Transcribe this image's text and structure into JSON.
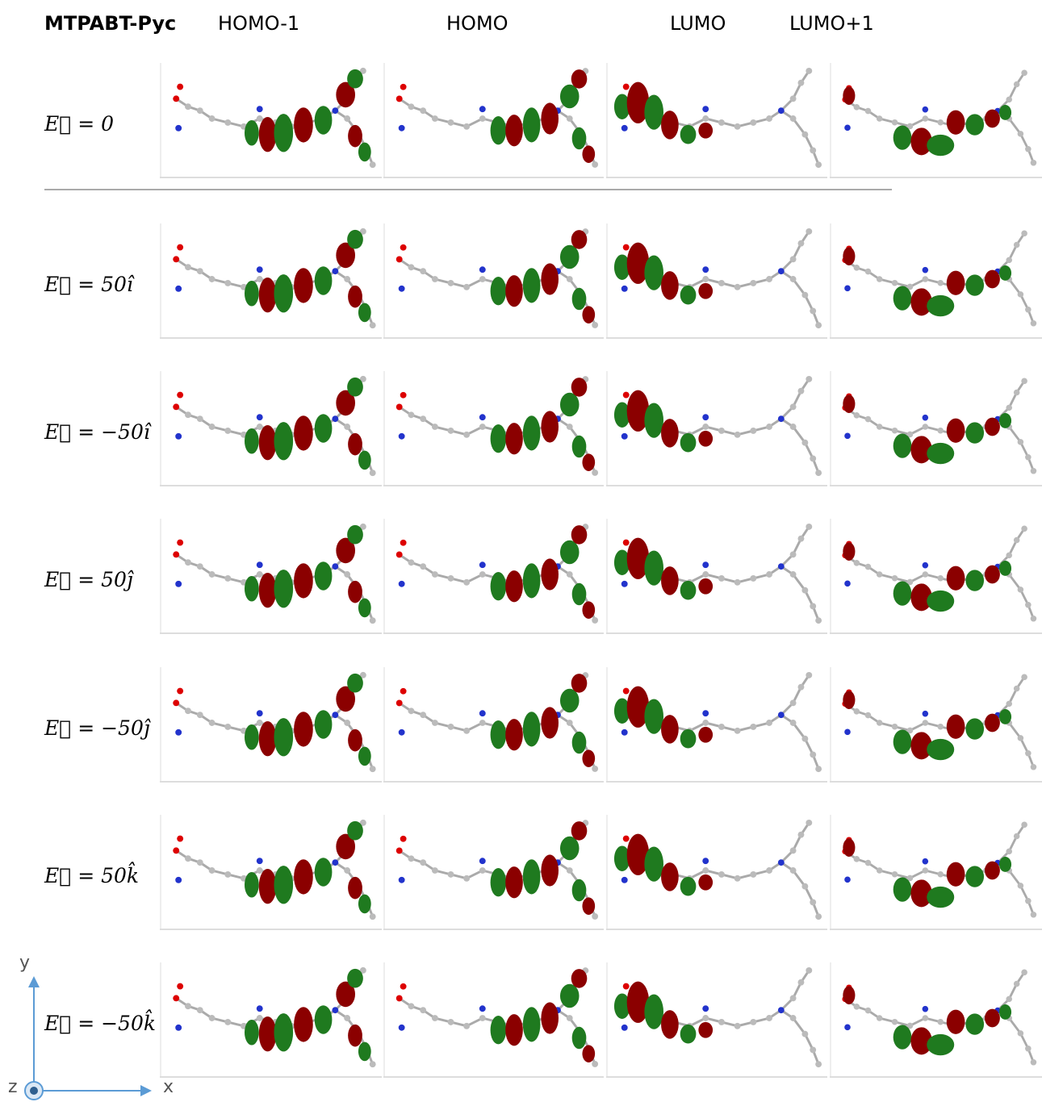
{
  "header": {
    "title": "MTPABT-Pyc",
    "columns": [
      "HOMO-1",
      "HOMO",
      "LUMO",
      "LUMO+1"
    ]
  },
  "rows": [
    {
      "label": "E⃗ = 0"
    },
    {
      "label": "E⃗ = 50î"
    },
    {
      "label": "E⃗ = −50î"
    },
    {
      "label": "E⃗ = 50ĵ"
    },
    {
      "label": "E⃗ = −50ĵ"
    },
    {
      "label": "E⃗ = 50k̂"
    },
    {
      "label": "E⃗ = −50k̂"
    }
  ],
  "axes": {
    "x": "x",
    "y": "y",
    "z": "z"
  }
}
